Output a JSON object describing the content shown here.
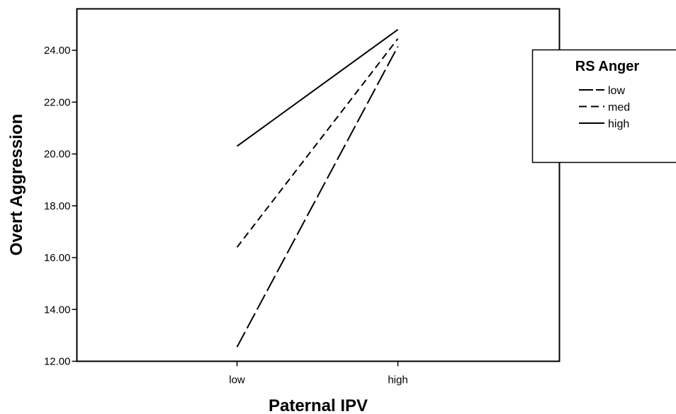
{
  "chart_data": {
    "type": "line",
    "title": "",
    "xlabel": "Paternal IPV",
    "ylabel": "Overt Aggression",
    "categories": [
      "low",
      "high"
    ],
    "ylim": [
      12,
      25.6
    ],
    "yticks": [
      "12.00",
      "14.00",
      "16.00",
      "18.00",
      "20.00",
      "22.00",
      "24.00"
    ],
    "grid": false,
    "legend": {
      "title": "RS Anger",
      "placement": "right"
    },
    "series": [
      {
        "name": "low",
        "values": [
          12.55,
          24.15
        ],
        "dash": "long-dash"
      },
      {
        "name": "med",
        "values": [
          16.4,
          24.45
        ],
        "dash": "short-dash"
      },
      {
        "name": "high",
        "values": [
          20.3,
          24.8
        ],
        "dash": "solid"
      }
    ]
  }
}
